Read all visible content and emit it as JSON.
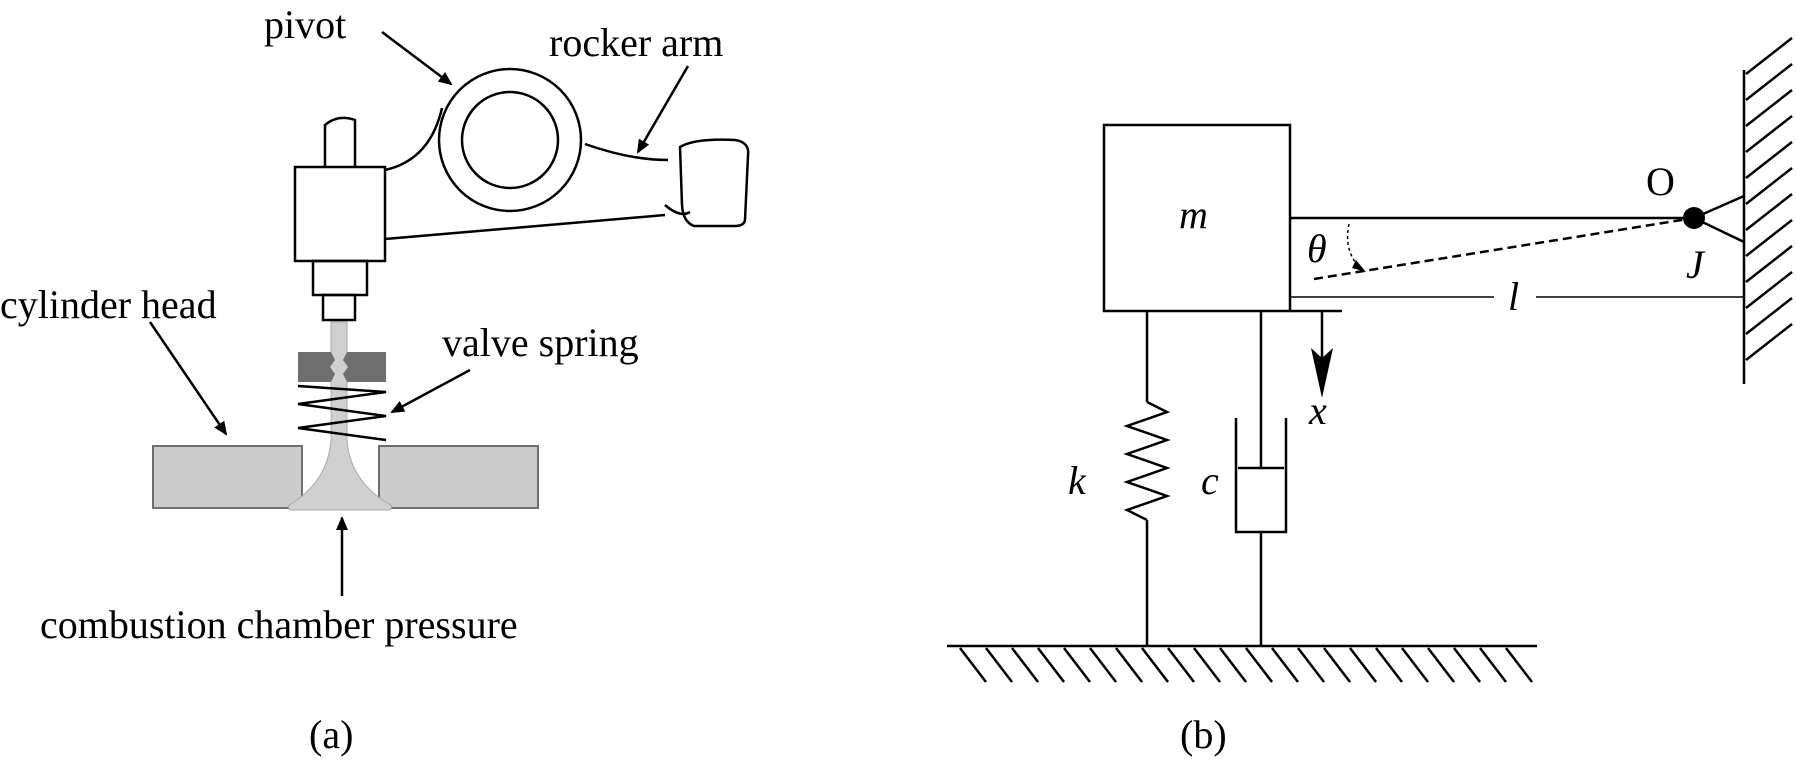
{
  "panel_a": {
    "caption": "(a)",
    "labels": {
      "pivot": "pivot",
      "rocker_arm": "rocker arm",
      "cylinder_head": "cylinder head",
      "valve_spring": "valve spring",
      "combustion_chamber_pressure": "combustion chamber pressure"
    },
    "colors": {
      "cylinder_head_fill": "#cccccc",
      "valve_fill": "#d0d0d0",
      "retainer_fill": "#6e6e6e"
    }
  },
  "panel_b": {
    "caption": "(b)",
    "symbols": {
      "mass": "m",
      "spring": "k",
      "damper": "c",
      "displacement": "x",
      "angle": "θ",
      "length": "l",
      "pivot_point": "O",
      "inertia": "J"
    }
  }
}
